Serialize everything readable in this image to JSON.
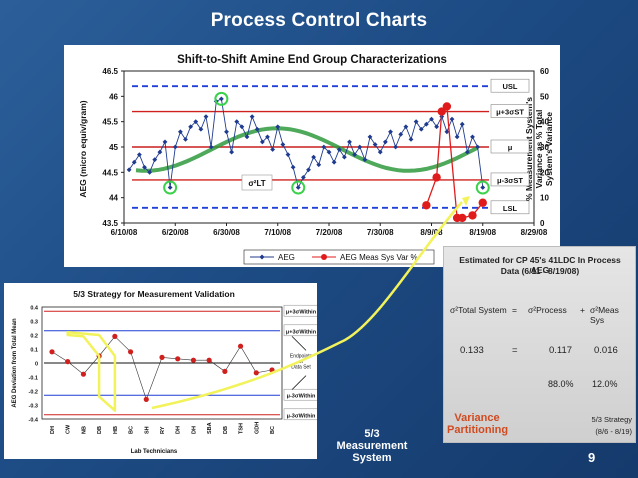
{
  "slide": {
    "title": "Process Control Charts",
    "page_number": "9",
    "measurement_label_line1": "5/3",
    "measurement_label_line2": "Measurement",
    "measurement_label_line3": "System"
  },
  "main_chart": {
    "title": "Shift-to-Shift Amine End Group Characterizations",
    "ylabel_left": "AEG (micro equiv/gram)",
    "ylabel_right_lines": [
      "% Measurement System's",
      "Variance as % Total",
      "System's Variance"
    ],
    "y_ticks_left": [
      "46.5",
      "46",
      "45.5",
      "45",
      "44.5",
      "44",
      "43.5"
    ],
    "y_ticks_right": [
      "60",
      "50",
      "40",
      "30",
      "20",
      "10",
      "0"
    ],
    "x_ticks": [
      "6/10/08",
      "6/20/08",
      "6/30/08",
      "7/10/08",
      "7/20/08",
      "7/30/08",
      "8/9/08",
      "8/19/08",
      "8/29/08"
    ],
    "limit_labels": [
      "USL",
      "μ+3σST",
      "μ",
      "μ-3σST",
      "LSL"
    ],
    "sigma_lt_label": "σ²LT",
    "legend": [
      "AEG",
      "AEG Meas Sys Var %"
    ]
  },
  "chart_data": [
    {
      "type": "line",
      "title": "Shift-to-Shift Amine End Group Characterizations",
      "xlabel": "",
      "ylabel": "AEG (micro equiv/gram)",
      "y2label": "% Measurement System's Variance as % Total System's Variance",
      "x_range": [
        "6/10/08",
        "8/29/08"
      ],
      "ylim": [
        43.5,
        46.5
      ],
      "y2lim": [
        0,
        60
      ],
      "limits": {
        "USL": 46.2,
        "mu_plus_3sigma_ST": 45.7,
        "mu": 45.0,
        "mu_minus_3sigma_ST": 44.35,
        "LSL": 43.8
      },
      "series": [
        {
          "name": "AEG",
          "x": [
            "6/11/08",
            "6/12/08",
            "6/13/08",
            "6/14/08",
            "6/15/08",
            "6/16/08",
            "6/17/08",
            "6/18/08",
            "6/19/08",
            "6/20/08",
            "6/21/08",
            "6/22/08",
            "6/23/08",
            "6/24/08",
            "6/25/08",
            "6/26/08",
            "6/27/08",
            "6/28/08",
            "6/29/08",
            "6/30/08",
            "7/1/08",
            "7/2/08",
            "7/3/08",
            "7/4/08",
            "7/5/08",
            "7/6/08",
            "7/7/08",
            "7/8/08",
            "7/9/08",
            "7/10/08",
            "7/11/08",
            "7/12/08",
            "7/13/08",
            "7/14/08",
            "7/15/08",
            "7/16/08",
            "7/17/08",
            "7/18/08",
            "7/19/08",
            "7/20/08",
            "7/21/08",
            "7/22/08",
            "7/23/08",
            "7/24/08",
            "7/25/08",
            "7/26/08",
            "7/27/08",
            "7/28/08",
            "7/29/08",
            "7/30/08",
            "7/31/08",
            "8/1/08",
            "8/2/08",
            "8/3/08",
            "8/4/08",
            "8/5/08",
            "8/6/08",
            "8/7/08",
            "8/8/08",
            "8/9/08",
            "8/10/08",
            "8/11/08",
            "8/12/08",
            "8/13/08",
            "8/14/08",
            "8/15/08",
            "8/16/08",
            "8/17/08",
            "8/18/08",
            "8/19/08"
          ],
          "values": [
            44.55,
            44.7,
            44.85,
            44.6,
            44.5,
            44.75,
            44.9,
            45.1,
            44.2,
            45.0,
            45.3,
            45.15,
            45.4,
            45.5,
            45.35,
            45.6,
            45.0,
            45.9,
            45.95,
            45.3,
            44.9,
            45.5,
            45.4,
            45.2,
            45.6,
            45.35,
            45.1,
            45.2,
            44.95,
            45.4,
            45.05,
            44.85,
            44.6,
            44.2,
            44.4,
            44.55,
            44.8,
            44.65,
            45.0,
            44.9,
            44.7,
            44.95,
            44.8,
            45.1,
            44.85,
            45.0,
            44.75,
            45.2,
            45.05,
            44.9,
            45.1,
            45.3,
            45.0,
            45.25,
            45.4,
            45.15,
            45.5,
            45.35,
            45.45,
            45.55,
            45.4,
            45.6,
            45.3,
            45.55,
            45.2,
            45.45,
            44.9,
            45.2,
            45.0,
            44.2
          ]
        },
        {
          "name": "AEG Meas Sys Var %",
          "axis": "right",
          "x": [
            "8/8/08",
            "8/10/08",
            "8/11/08",
            "8/12/08",
            "8/14/08",
            "8/15/08",
            "8/17/08",
            "8/19/08"
          ],
          "values": [
            7,
            18,
            44,
            46,
            2,
            2,
            3,
            8
          ]
        }
      ]
    },
    {
      "type": "scatter",
      "title": "5/3 Strategy for Measurement Validation",
      "xlabel": "Lab Technicians",
      "ylabel": "AEG Deviation from Total Mean",
      "ylim": [
        -0.4,
        0.4
      ],
      "categories": [
        "DH",
        "CW",
        "NB",
        "DB",
        "HB",
        "BC",
        "SH",
        "RY",
        "DH",
        "DH",
        "SBA",
        "DB",
        "TSH",
        "GDH",
        "BC"
      ],
      "values": [
        0.08,
        0.01,
        -0.08,
        0.05,
        0.19,
        0.08,
        -0.26,
        0.04,
        0.03,
        0.02,
        0.02,
        -0.06,
        0.12,
        -0.07,
        -0.05
      ]
    }
  ],
  "lower_chart": {
    "title": "5/3 Strategy for Measurement Validation",
    "ylabel": "AEG Deviation from Total Mean",
    "xlabel": "Lab Technicians",
    "y_ticks": [
      "0.4",
      "0.3",
      "0.2",
      "0.1",
      "0",
      "-0.1",
      "-0.2",
      "-0.3",
      "-0.4"
    ],
    "categories": [
      "DH",
      "CW",
      "NB",
      "DB",
      "HB",
      "BC",
      "SH",
      "RY",
      "DH",
      "DH",
      "SBA",
      "DB",
      "TSH",
      "GDH",
      "BC"
    ],
    "limit_labels": [
      "μ+3σWithin",
      "μ+3σWithin",
      "μ-3σWithin",
      "μ-3σWithin"
    ],
    "endpoints_label_line1": "Endpoints",
    "endpoints_label_line2": "of",
    "endpoints_label_line3": "Data Set"
  },
  "estimate_box": {
    "title_line1": "Estimated for CP 45's 41LDC In Process AEG",
    "title_line2": "Data (6/11 - 8/19/08)",
    "eq_total": "σ²Total System",
    "eq_equals": "=",
    "eq_process": "σ²Process",
    "eq_plus": "+",
    "eq_meas": "σ²Meas Sys",
    "val_total": "0.133",
    "val_equals": "=",
    "val_process": "0.117",
    "val_meas": "0.016",
    "pct_process": "88.0%",
    "pct_meas": "12.0%",
    "strategy_line1": "5/3 Strategy",
    "strategy_line2": "(8/6 - 8/19)"
  },
  "partition_label": {
    "line1": "Variance",
    "line2": "Partitioning"
  },
  "colors": {
    "background": "#1d4b84",
    "aeg_line": "#1f3b8f",
    "meas_line": "#e01b1b",
    "spec_dashed": "#1f3fd6",
    "control_red": "#d0201e",
    "mu_red": "#c71f1c",
    "trend_green": "#2f9a3d",
    "highlight_yellow": "#f2f25a",
    "partition_orange": "#d14b21"
  }
}
